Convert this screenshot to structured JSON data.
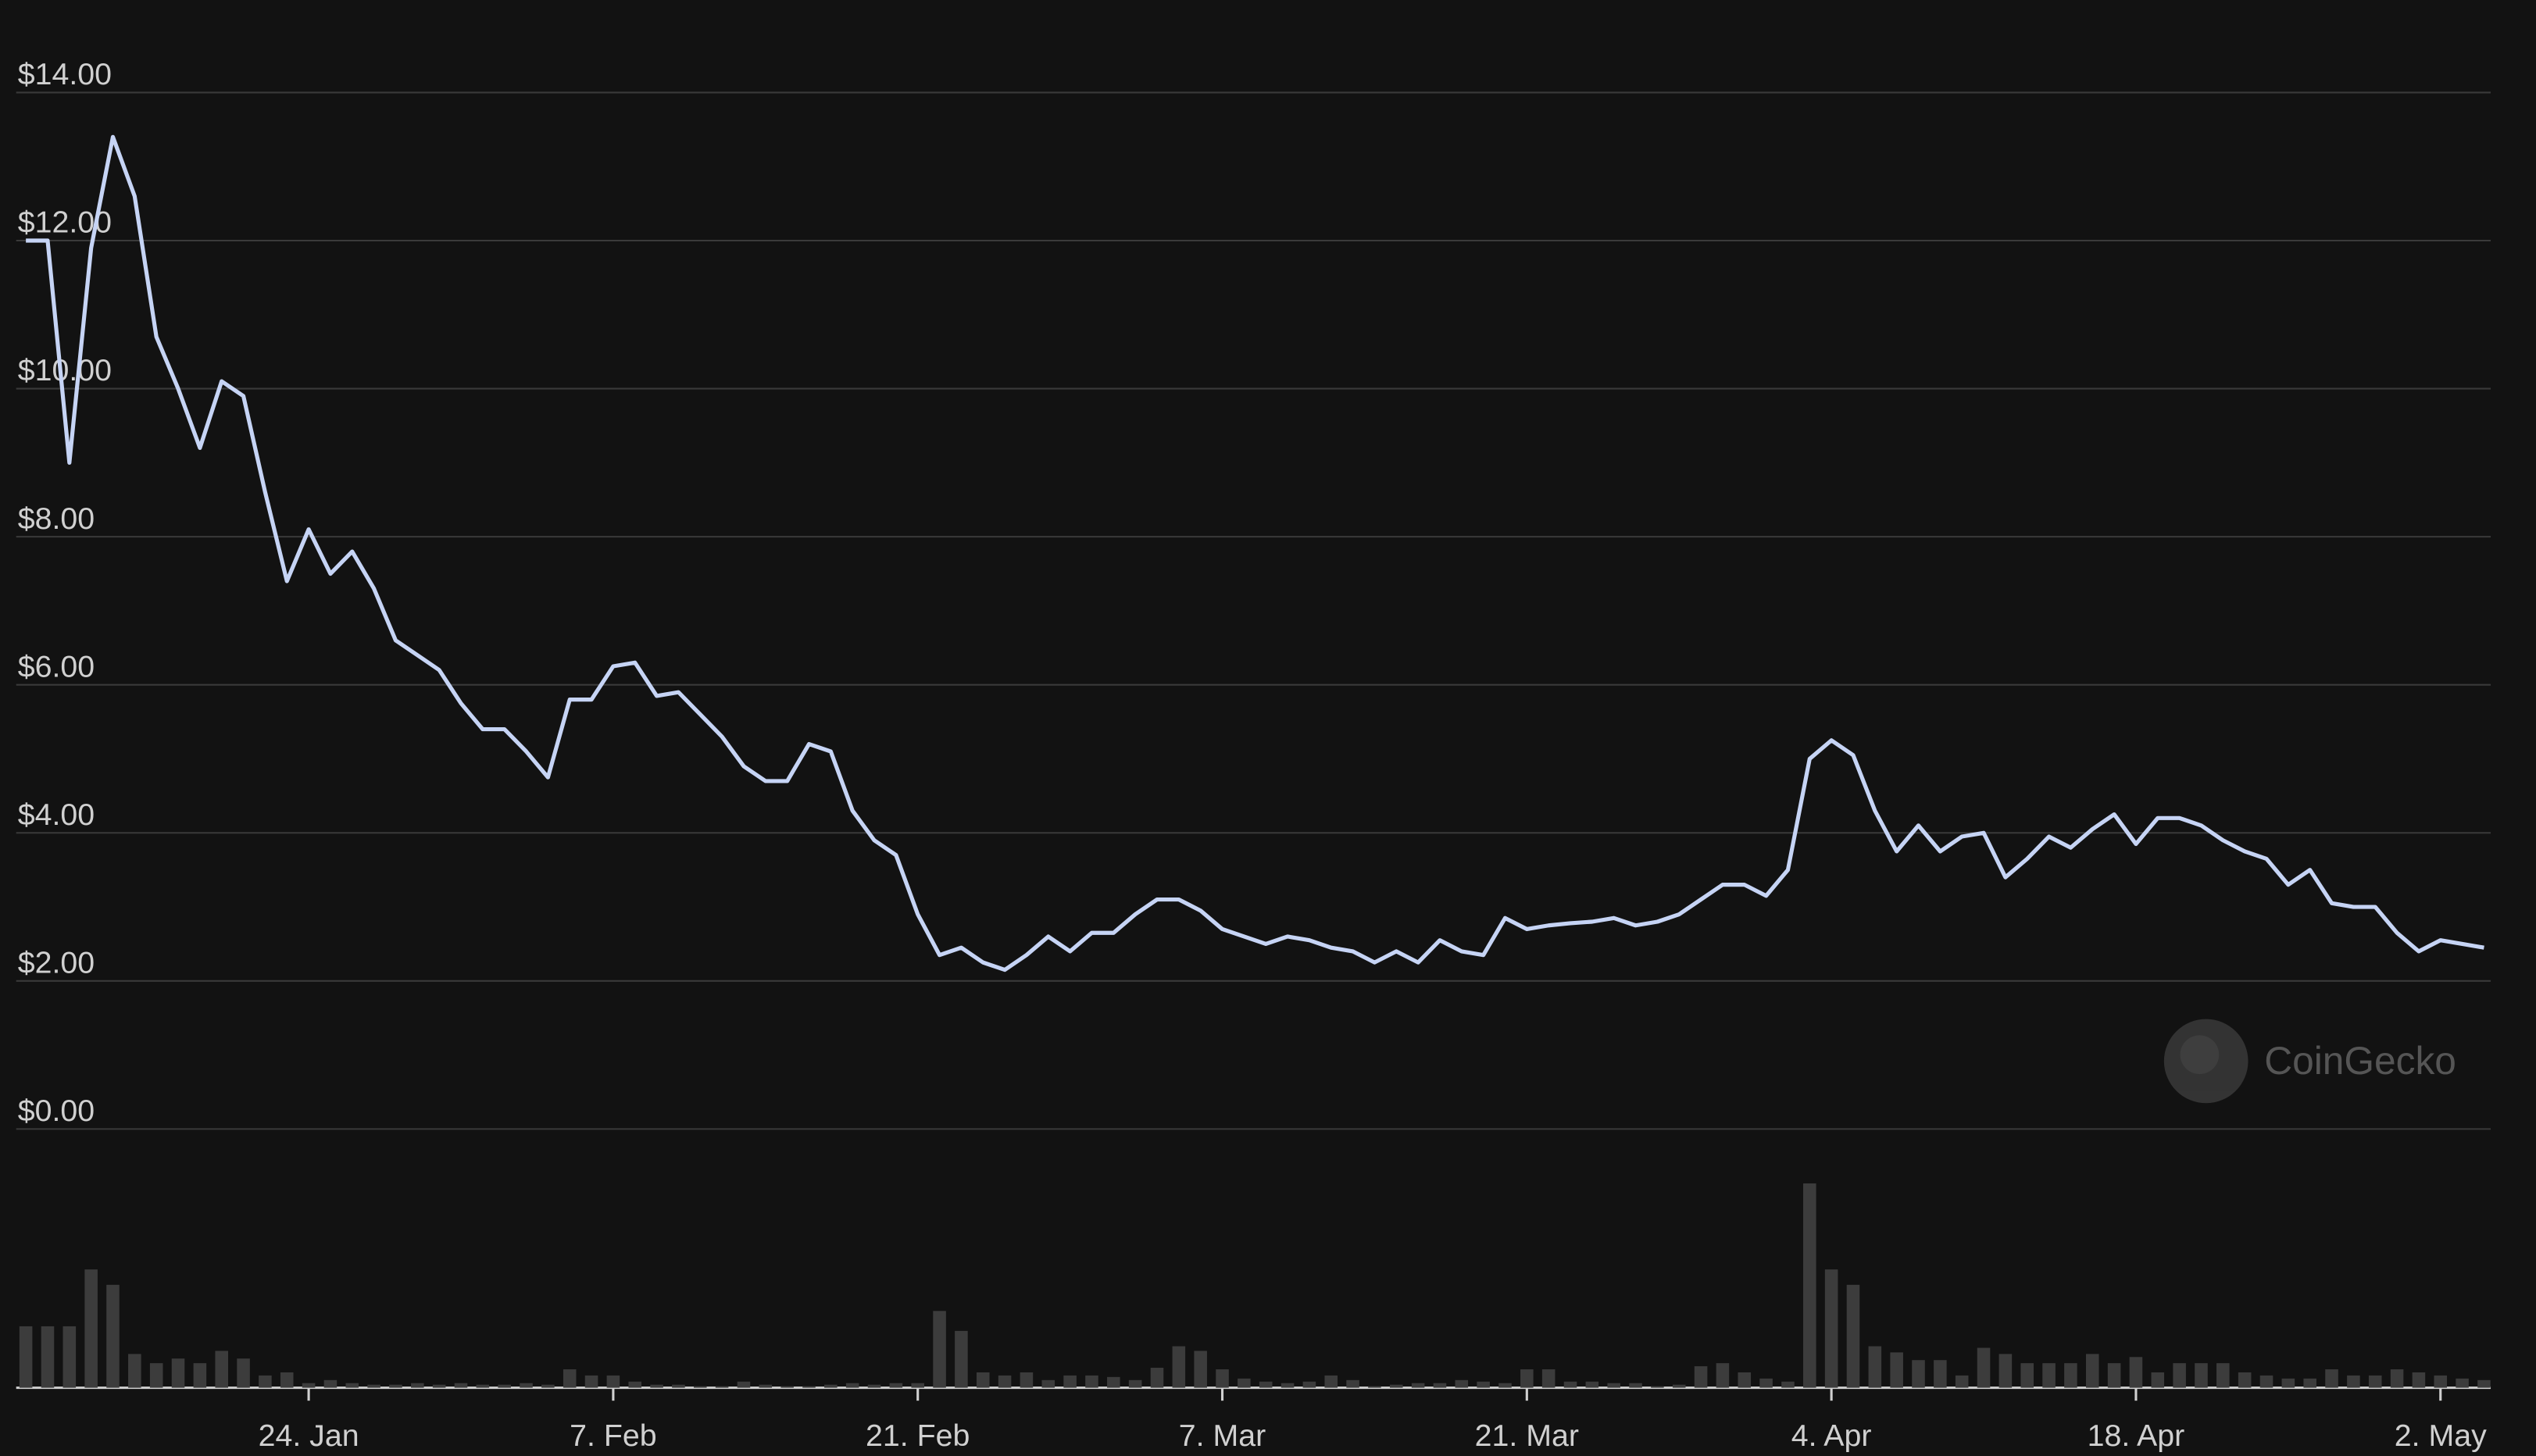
{
  "chart_data": {
    "type": "line",
    "categories": [
      "11. Jan",
      "12. Jan",
      "13. Jan",
      "14. Jan",
      "15. Jan",
      "16. Jan",
      "17. Jan",
      "18. Jan",
      "19. Jan",
      "20. Jan",
      "21. Jan",
      "22. Jan",
      "23. Jan",
      "24. Jan",
      "25. Jan",
      "26. Jan",
      "27. Jan",
      "28. Jan",
      "29. Jan",
      "30. Jan",
      "31. Jan",
      "1. Feb",
      "2. Feb",
      "3. Feb",
      "4. Feb",
      "5. Feb",
      "6. Feb",
      "7. Feb",
      "8. Feb",
      "9. Feb",
      "10. Feb",
      "11. Feb",
      "12. Feb",
      "13. Feb",
      "14. Feb",
      "15. Feb",
      "16. Feb",
      "17. Feb",
      "18. Feb",
      "19. Feb",
      "20. Feb",
      "21. Feb",
      "22. Feb",
      "23. Feb",
      "24. Feb",
      "25. Feb",
      "26. Feb",
      "27. Feb",
      "28. Feb",
      "1. Mar",
      "2. Mar",
      "3. Mar",
      "4. Mar",
      "5. Mar",
      "6. Mar",
      "7. Mar",
      "8. Mar",
      "9. Mar",
      "10. Mar",
      "11. Mar",
      "12. Mar",
      "13. Mar",
      "14. Mar",
      "15. Mar",
      "16. Mar",
      "17. Mar",
      "18. Mar",
      "19. Mar",
      "20. Mar",
      "21. Mar",
      "22. Mar",
      "23. Mar",
      "24. Mar",
      "25. Mar",
      "26. Mar",
      "27. Mar",
      "28. Mar",
      "29. Mar",
      "30. Mar",
      "31. Mar",
      "1. Apr",
      "2. Apr",
      "3. Apr",
      "4. Apr",
      "5. Apr",
      "6. Apr",
      "7. Apr",
      "8. Apr",
      "9. Apr",
      "10. Apr",
      "11. Apr",
      "12. Apr",
      "13. Apr",
      "14. Apr",
      "15. Apr",
      "16. Apr",
      "17. Apr",
      "18. Apr",
      "19. Apr",
      "20. Apr",
      "21. Apr",
      "22. Apr",
      "23. Apr",
      "24. Apr",
      "25. Apr",
      "26. Apr",
      "27. Apr",
      "28. Apr",
      "29. Apr",
      "30. Apr",
      "1. May",
      "2. May",
      "3. May",
      "4. May"
    ],
    "series": [
      {
        "color": "#c6d4f5",
        "values": [
          12.0,
          12.0,
          9.0,
          11.9,
          13.4,
          12.6,
          10.7,
          10.0,
          9.2,
          10.1,
          9.9,
          8.6,
          7.4,
          8.1,
          7.5,
          7.8,
          7.3,
          6.6,
          6.4,
          6.2,
          5.75,
          5.4,
          5.4,
          5.1,
          4.75,
          5.8,
          5.8,
          6.25,
          6.3,
          5.85,
          5.9,
          5.6,
          5.3,
          4.9,
          4.7,
          4.7,
          5.2,
          5.1,
          4.3,
          3.9,
          3.7,
          2.9,
          2.35,
          2.45,
          2.25,
          2.15,
          2.35,
          2.6,
          2.4,
          2.65,
          2.65,
          2.9,
          3.1,
          3.1,
          2.95,
          2.7,
          2.6,
          2.5,
          2.6,
          2.55,
          2.45,
          2.4,
          2.25,
          2.4,
          2.25,
          2.55,
          2.4,
          2.35,
          2.85,
          2.7,
          2.75,
          2.78,
          2.8,
          2.85,
          2.75,
          2.8,
          2.9,
          3.1,
          3.3,
          3.3,
          3.15,
          3.5,
          5.0,
          5.25,
          5.05,
          4.3,
          3.75,
          4.1,
          3.75,
          3.95,
          4.0,
          3.4,
          3.65,
          3.95,
          3.8,
          4.05,
          4.25,
          3.85,
          4.2,
          4.2,
          4.1,
          3.9,
          3.75,
          3.65,
          3.3,
          3.5,
          3.05,
          3.0,
          3.0,
          2.65,
          2.4,
          2.55,
          2.5,
          2.45
        ]
      },
      {
        "type": "bar",
        "axis": "y2",
        "color": "#3c3c3c",
        "values": [
          40,
          40,
          40,
          77,
          67,
          22,
          16,
          19,
          16,
          24,
          19,
          8,
          10,
          3,
          5,
          3,
          2,
          2,
          3,
          2,
          3,
          2,
          2,
          3,
          2,
          12,
          8,
          8,
          4,
          2,
          2,
          1,
          1,
          4,
          2,
          1,
          1,
          2,
          3,
          2,
          3,
          3,
          50,
          37,
          10,
          8,
          10,
          5,
          8,
          8,
          7,
          5,
          13,
          27,
          24,
          12,
          6,
          4,
          3,
          4,
          8,
          5,
          1,
          2,
          3,
          3,
          5,
          4,
          3,
          12,
          12,
          4,
          4,
          3,
          3,
          1,
          2,
          14,
          16,
          10,
          6,
          4,
          133,
          77,
          67,
          27,
          23,
          18,
          18,
          8,
          26,
          22,
          16,
          16,
          16,
          22,
          16,
          20,
          10,
          16,
          16,
          16,
          10,
          8,
          6,
          6,
          12,
          8,
          8,
          12,
          10,
          8,
          6,
          5
        ]
      }
    ],
    "ylim": [
      0,
      14
    ],
    "yticks": [
      {
        "value": 0,
        "label": "$0.00"
      },
      {
        "value": 2,
        "label": "$2.00"
      },
      {
        "value": 4,
        "label": "$4.00"
      },
      {
        "value": 6,
        "label": "$6.00"
      },
      {
        "value": 8,
        "label": "$8.00"
      },
      {
        "value": 10,
        "label": "$10.00"
      },
      {
        "value": 12,
        "label": "$12.00"
      },
      {
        "value": 14,
        "label": "$14.00"
      }
    ],
    "y2lim": [
      0,
      140
    ],
    "xticks": [
      "24. Jan",
      "7. Feb",
      "21. Feb",
      "7. Mar",
      "21. Mar",
      "4. Apr",
      "18. Apr",
      "2. May"
    ],
    "grid": true,
    "watermark": "CoinGecko"
  }
}
